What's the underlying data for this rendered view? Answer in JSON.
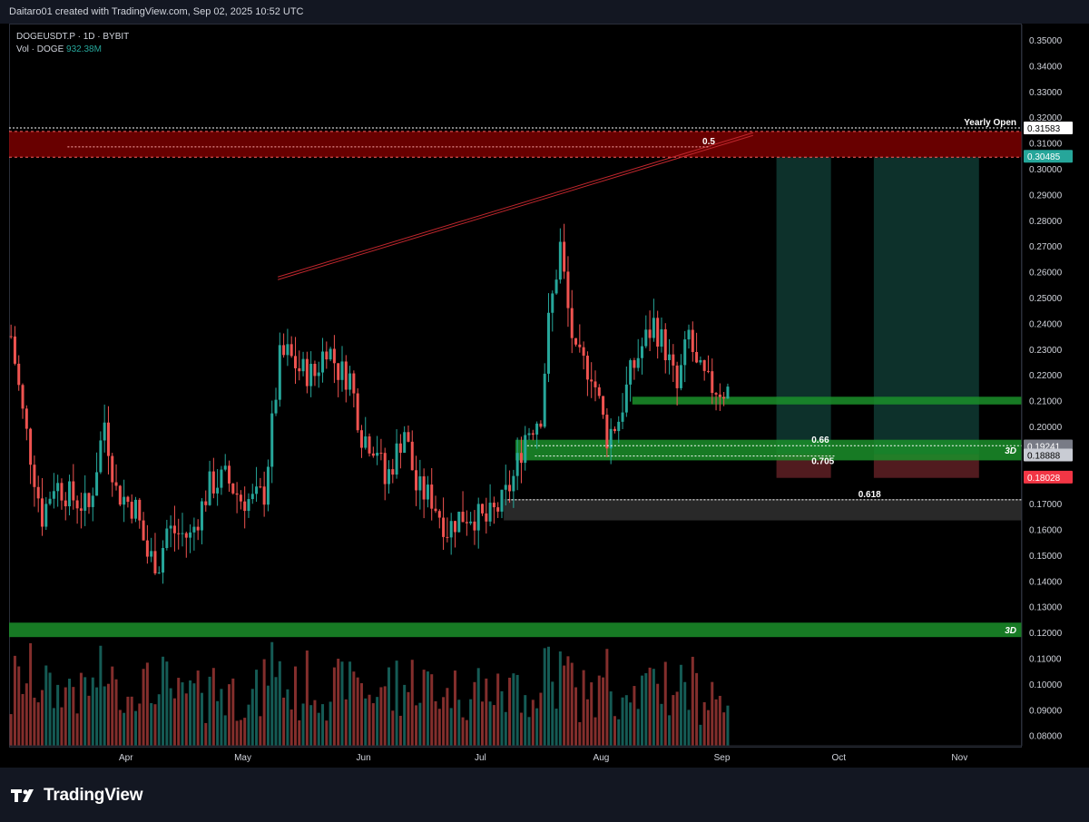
{
  "header": {
    "caption": "Daitaro01 created with TradingView.com, Sep 02, 2025 10:52 UTC"
  },
  "legend": {
    "symbol": "DOGEUSDT.P · 1D · BYBIT",
    "vol_label": "Vol · DOGE",
    "vol_value": "932.38M"
  },
  "branding": {
    "logo_text": "TradingView",
    "logo_icon": "tradingview-logo-icon"
  },
  "colors": {
    "up": "#26a69a",
    "down": "#ef5350",
    "supply_zone": "#8b0000",
    "demand_zone": "#1b8f2a",
    "projection_zone": "#0f3a33",
    "price_tag_current": "#f23645",
    "price_tag_open": "#26a69a"
  },
  "chart_data": {
    "type": "candlestick",
    "symbol": "DOGEUSDT.P",
    "timeframe": "1D",
    "exchange": "BYBIT",
    "ylim": [
      0.076,
      0.356
    ],
    "y_ticks": [
      "0.35000",
      "0.34000",
      "0.33000",
      "0.32000",
      "0.31000",
      "0.30000",
      "0.29000",
      "0.28000",
      "0.27000",
      "0.26000",
      "0.25000",
      "0.24000",
      "0.23000",
      "0.22000",
      "0.21000",
      "0.20000",
      "0.19000",
      "0.18000",
      "0.17000",
      "0.16000",
      "0.15000",
      "0.14000",
      "0.13000",
      "0.12000",
      "0.11000",
      "0.10000",
      "0.09000",
      "0.08000"
    ],
    "x_ticks": [
      {
        "label": "Apr",
        "date": "2025-04-01"
      },
      {
        "label": "May",
        "date": "2025-05-01"
      },
      {
        "label": "Jun",
        "date": "2025-06-01"
      },
      {
        "label": "Jul",
        "date": "2025-07-01"
      },
      {
        "label": "Aug",
        "date": "2025-08-01"
      },
      {
        "label": "Sep",
        "date": "2025-09-01"
      },
      {
        "label": "Oct",
        "date": "2025-10-01"
      },
      {
        "label": "Nov",
        "date": "2025-11-01"
      }
    ],
    "x_range": [
      "2025-03-02",
      "2025-11-17"
    ],
    "price_path": [
      [
        "2025-03-02",
        0.235
      ],
      [
        "2025-03-05",
        0.205
      ],
      [
        "2025-03-10",
        0.165
      ],
      [
        "2025-03-13",
        0.178
      ],
      [
        "2025-03-18",
        0.172
      ],
      [
        "2025-03-22",
        0.168
      ],
      [
        "2025-03-26",
        0.202
      ],
      [
        "2025-03-29",
        0.175
      ],
      [
        "2025-04-03",
        0.168
      ],
      [
        "2025-04-06",
        0.15
      ],
      [
        "2025-04-09",
        0.147
      ],
      [
        "2025-04-11",
        0.16
      ],
      [
        "2025-04-17",
        0.157
      ],
      [
        "2025-04-22",
        0.177
      ],
      [
        "2025-04-26",
        0.18
      ],
      [
        "2025-04-30",
        0.172
      ],
      [
        "2025-05-03",
        0.171
      ],
      [
        "2025-05-06",
        0.174
      ],
      [
        "2025-05-08",
        0.2
      ],
      [
        "2025-05-10",
        0.226
      ],
      [
        "2025-05-12",
        0.228
      ],
      [
        "2025-05-15",
        0.222
      ],
      [
        "2025-05-19",
        0.22
      ],
      [
        "2025-05-22",
        0.232
      ],
      [
        "2025-05-25",
        0.222
      ],
      [
        "2025-05-28",
        0.219
      ],
      [
        "2025-05-31",
        0.197
      ],
      [
        "2025-06-04",
        0.192
      ],
      [
        "2025-06-06",
        0.178
      ],
      [
        "2025-06-09",
        0.19
      ],
      [
        "2025-06-11",
        0.199
      ],
      [
        "2025-06-14",
        0.176
      ],
      [
        "2025-06-18",
        0.172
      ],
      [
        "2025-06-22",
        0.16
      ],
      [
        "2025-06-25",
        0.165
      ],
      [
        "2025-06-28",
        0.166
      ],
      [
        "2025-07-02",
        0.163
      ],
      [
        "2025-07-06",
        0.17
      ],
      [
        "2025-07-09",
        0.18
      ],
      [
        "2025-07-12",
        0.197
      ],
      [
        "2025-07-16",
        0.205
      ],
      [
        "2025-07-18",
        0.24
      ],
      [
        "2025-07-21",
        0.27
      ],
      [
        "2025-07-23",
        0.245
      ],
      [
        "2025-07-25",
        0.226
      ],
      [
        "2025-07-29",
        0.222
      ],
      [
        "2025-08-02",
        0.196
      ],
      [
        "2025-08-05",
        0.203
      ],
      [
        "2025-08-08",
        0.22
      ],
      [
        "2025-08-11",
        0.231
      ],
      [
        "2025-08-14",
        0.24
      ],
      [
        "2025-08-17",
        0.23
      ],
      [
        "2025-08-20",
        0.214
      ],
      [
        "2025-08-23",
        0.236
      ],
      [
        "2025-08-25",
        0.222
      ],
      [
        "2025-08-28",
        0.216
      ],
      [
        "2025-09-01",
        0.214
      ]
    ],
    "levels": [
      {
        "name": "Yearly Open",
        "value": 0.31583,
        "style": "dotted",
        "color": "#ffffff"
      },
      {
        "name": "0.5",
        "value": 0.3085,
        "style": "dotted",
        "color": "#ffaaaa"
      },
      {
        "name": "0.66",
        "value": 0.1925,
        "style": "dotted",
        "color": "#ffffff"
      },
      {
        "name": "0.705",
        "value": 0.1885,
        "style": "dotted",
        "color": "#ffffff"
      },
      {
        "name": "0.618",
        "value": 0.1715,
        "style": "dotted",
        "color": "#ffffff"
      }
    ],
    "zones": [
      {
        "type": "supply",
        "from": 0.3045,
        "to": 0.3145,
        "color": "#8b0000"
      },
      {
        "type": "demand",
        "from": 0.2085,
        "to": 0.2115,
        "color": "#1b8f2a"
      },
      {
        "type": "demand",
        "from": 0.1868,
        "to": 0.1948,
        "color": "#1b8f2a",
        "tag": "3D"
      },
      {
        "type": "gray",
        "from": 0.1635,
        "to": 0.1718,
        "color": "#3a3a3a"
      },
      {
        "type": "demand",
        "from": 0.1182,
        "to": 0.1238,
        "color": "#1b8f2a",
        "tag": "3D"
      }
    ],
    "price_tags": [
      {
        "label": "0.31583",
        "value": 0.31583,
        "bg": "#ffffff",
        "fg": "#000000"
      },
      {
        "label": "0.30485",
        "value": 0.30485,
        "bg": "#26a69a",
        "fg": "#ffffff"
      },
      {
        "label": "0.19241",
        "value": 0.19241,
        "bg": "#787b86",
        "fg": "#ffffff"
      },
      {
        "label": "0.18888",
        "value": 0.18888,
        "bg": "#c9ccd4",
        "fg": "#000000"
      },
      {
        "label": "0.18028",
        "value": 0.18028,
        "bg": "#f23645",
        "fg": "#ffffff"
      }
    ],
    "trendline": {
      "from": [
        "2025-05-10",
        0.258
      ],
      "to": [
        "2025-09-09",
        0.314
      ]
    },
    "tag_labels": [
      "3D",
      "3D"
    ]
  }
}
